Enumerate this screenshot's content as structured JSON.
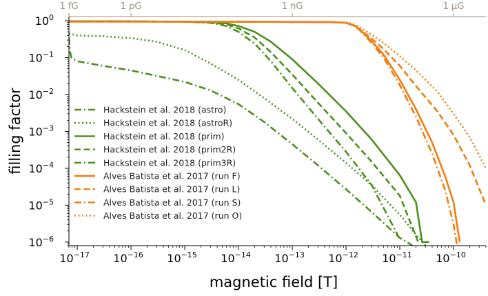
{
  "chart_data": {
    "type": "line",
    "xlabel": "magnetic field [T]",
    "ylabel": "filling factor",
    "xscale": "log",
    "yscale": "log",
    "xlim": [
      7e-18,
      4e-10
    ],
    "ylim": [
      8e-07,
      1.3
    ],
    "grid": false,
    "legend": "lower-left",
    "x_ticks": [
      {
        "value": 1e-17,
        "label_base": "10",
        "label_exp": "−17"
      },
      {
        "value": 1e-16,
        "label_base": "10",
        "label_exp": "−16"
      },
      {
        "value": 1e-15,
        "label_base": "10",
        "label_exp": "−15"
      },
      {
        "value": 1e-14,
        "label_base": "10",
        "label_exp": "−14"
      },
      {
        "value": 1e-13,
        "label_base": "10",
        "label_exp": "−13"
      },
      {
        "value": 1e-12,
        "label_base": "10",
        "label_exp": "−12"
      },
      {
        "value": 1e-11,
        "label_base": "10",
        "label_exp": "−11"
      },
      {
        "value": 1e-10,
        "label_base": "10",
        "label_exp": "−10"
      }
    ],
    "y_ticks": [
      {
        "value": 1,
        "label_base": "10",
        "label_exp": "0"
      },
      {
        "value": 0.1,
        "label_base": "10",
        "label_exp": "−1"
      },
      {
        "value": 0.01,
        "label_base": "10",
        "label_exp": "−2"
      },
      {
        "value": 0.001,
        "label_base": "10",
        "label_exp": "−3"
      },
      {
        "value": 0.0001,
        "label_base": "10",
        "label_exp": "−4"
      },
      {
        "value": 1e-05,
        "label_base": "10",
        "label_exp": "−5"
      },
      {
        "value": 1e-06,
        "label_base": "10",
        "label_exp": "−6"
      }
    ],
    "top_axis": {
      "color": "#9e8f80",
      "ticks": [
        {
          "value": 1e-19,
          "label": "1 fG"
        },
        {
          "value": 1e-16,
          "label": "1 pG"
        },
        {
          "value": 1e-13,
          "label": "1 nG"
        },
        {
          "value": 1e-10,
          "label": "1 μG"
        }
      ]
    },
    "series": [
      {
        "name": "Hackstein et al. 2018 (astro)",
        "color": "#4a8f1c",
        "dash": "dashdot",
        "x": [
          7e-18,
          7.3e-18,
          7.8e-18,
          1e-17,
          3e-17,
          1e-16,
          3e-16,
          1e-15,
          3e-15,
          1e-14,
          3e-14,
          1e-13,
          3e-13,
          1e-12,
          3e-12,
          1e-11,
          2e-11,
          3e-11
        ],
        "y": [
          0.35,
          0.15,
          0.1,
          0.08,
          0.06,
          0.045,
          0.032,
          0.022,
          0.013,
          0.0055,
          0.0018,
          0.00045,
          0.00012,
          2.7e-05,
          6.5e-06,
          1.3e-06,
          7e-07,
          6e-07
        ]
      },
      {
        "name": "Hackstein et al. 2018 (astroR)",
        "color": "#4a8f1c",
        "dash": "dot",
        "x": [
          7e-18,
          1e-17,
          3e-17,
          1e-16,
          3e-16,
          1e-15,
          3e-15,
          1e-14,
          3e-14,
          1e-13,
          3e-13,
          1e-12,
          3e-12,
          1e-11,
          2e-11,
          3e-11
        ],
        "y": [
          0.45,
          0.4,
          0.38,
          0.34,
          0.27,
          0.16,
          0.07,
          0.025,
          0.008,
          0.0022,
          0.0006,
          0.00014,
          3.5e-05,
          5.5e-06,
          1.6e-06,
          8e-07
        ]
      },
      {
        "name": "Hackstein et al. 2018 (prim)",
        "color": "#4a8f1c",
        "dash": "solid",
        "x": [
          7e-18,
          1e-16,
          1e-15,
          3e-15,
          6e-15,
          1e-14,
          2e-14,
          4e-14,
          1e-13,
          3e-13,
          1e-12,
          3e-12,
          1e-11,
          2e-11,
          2.6e-11,
          3e-11,
          3.5e-11
        ],
        "y": [
          0.97,
          0.96,
          0.95,
          0.92,
          0.85,
          0.72,
          0.5,
          0.27,
          0.09,
          0.02,
          0.0035,
          0.0006,
          6.5e-05,
          1.2e-05,
          1e-06,
          1e-06,
          1e-06
        ]
      },
      {
        "name": "Hackstein et al. 2018 (prim2R)",
        "color": "#4a8f1c",
        "dash": "dash",
        "x": [
          7e-18,
          1e-16,
          1e-15,
          3e-15,
          6e-15,
          1e-14,
          2e-14,
          4e-14,
          1e-13,
          3e-13,
          1e-12,
          3e-12,
          1e-11,
          2.2e-11
        ],
        "y": [
          0.97,
          0.96,
          0.94,
          0.9,
          0.8,
          0.62,
          0.35,
          0.14,
          0.035,
          0.006,
          0.0009,
          0.00015,
          1.8e-05,
          1e-06
        ]
      },
      {
        "name": "Hackstein et al. 2018 (prim3R)",
        "color": "#4a8f1c",
        "dash": "dashdot",
        "x": [
          7e-18,
          1e-16,
          1e-15,
          3e-15,
          6e-15,
          1e-14,
          2e-14,
          4e-14,
          1e-13,
          3e-13,
          1e-12,
          3e-12,
          1e-11
        ],
        "y": [
          0.97,
          0.96,
          0.94,
          0.88,
          0.72,
          0.5,
          0.24,
          0.08,
          0.015,
          0.0022,
          0.00028,
          3.5e-05,
          1.2e-06
        ]
      },
      {
        "name": "Alves Batista et al. 2017 (run F)",
        "color": "#f07d11",
        "dash": "solid",
        "x": [
          7e-18,
          1e-15,
          1e-14,
          1e-13,
          5e-13,
          1e-12,
          1.5e-12,
          2e-12,
          3e-12,
          5e-12,
          1e-11,
          2e-11,
          4e-11,
          7e-11,
          1e-10,
          1.3e-10
        ],
        "y": [
          0.95,
          0.95,
          0.94,
          0.93,
          0.92,
          0.88,
          0.72,
          0.5,
          0.28,
          0.12,
          0.025,
          0.004,
          0.0005,
          6e-05,
          1.2e-05,
          1e-06
        ]
      },
      {
        "name": "Alves Batista et al. 2017 (run L)",
        "color": "#f07d11",
        "dash": "dash",
        "x": [
          7e-18,
          1e-15,
          1e-14,
          1e-13,
          5e-13,
          1e-12,
          1.5e-12,
          2e-12,
          3e-12,
          5e-12,
          1e-11,
          2e-11,
          5e-11,
          1e-10,
          2e-10,
          4e-10
        ],
        "y": [
          0.95,
          0.95,
          0.94,
          0.93,
          0.92,
          0.88,
          0.72,
          0.52,
          0.33,
          0.17,
          0.06,
          0.017,
          0.0035,
          0.0008,
          0.00012,
          1e-05
        ]
      },
      {
        "name": "Alves Batista et al. 2017 (run S)",
        "color": "#f07d11",
        "dash": "dashdot",
        "x": [
          7e-18,
          1e-15,
          1e-14,
          1e-13,
          5e-13,
          1e-12,
          1.5e-12,
          2e-12,
          3e-12,
          5e-12,
          1e-11,
          2e-11,
          4e-11,
          7e-11,
          1e-10,
          1.2e-10
        ],
        "y": [
          0.95,
          0.95,
          0.94,
          0.93,
          0.92,
          0.88,
          0.7,
          0.48,
          0.25,
          0.1,
          0.018,
          0.0025,
          0.00025,
          2.5e-05,
          3e-06,
          6e-07
        ]
      },
      {
        "name": "Alves Batista et al. 2017 (run O)",
        "color": "#f07d11",
        "dash": "dot",
        "x": [
          7e-18,
          1e-15,
          1e-14,
          1e-13,
          5e-13,
          1e-12,
          1.5e-12,
          2e-12,
          3e-12,
          5e-12,
          1e-11,
          2e-11,
          5e-11,
          1e-10,
          2e-10,
          4e-10
        ],
        "y": [
          0.95,
          0.95,
          0.94,
          0.93,
          0.92,
          0.9,
          0.78,
          0.6,
          0.42,
          0.25,
          0.11,
          0.045,
          0.012,
          0.003,
          0.0007,
          0.0001
        ]
      }
    ]
  }
}
